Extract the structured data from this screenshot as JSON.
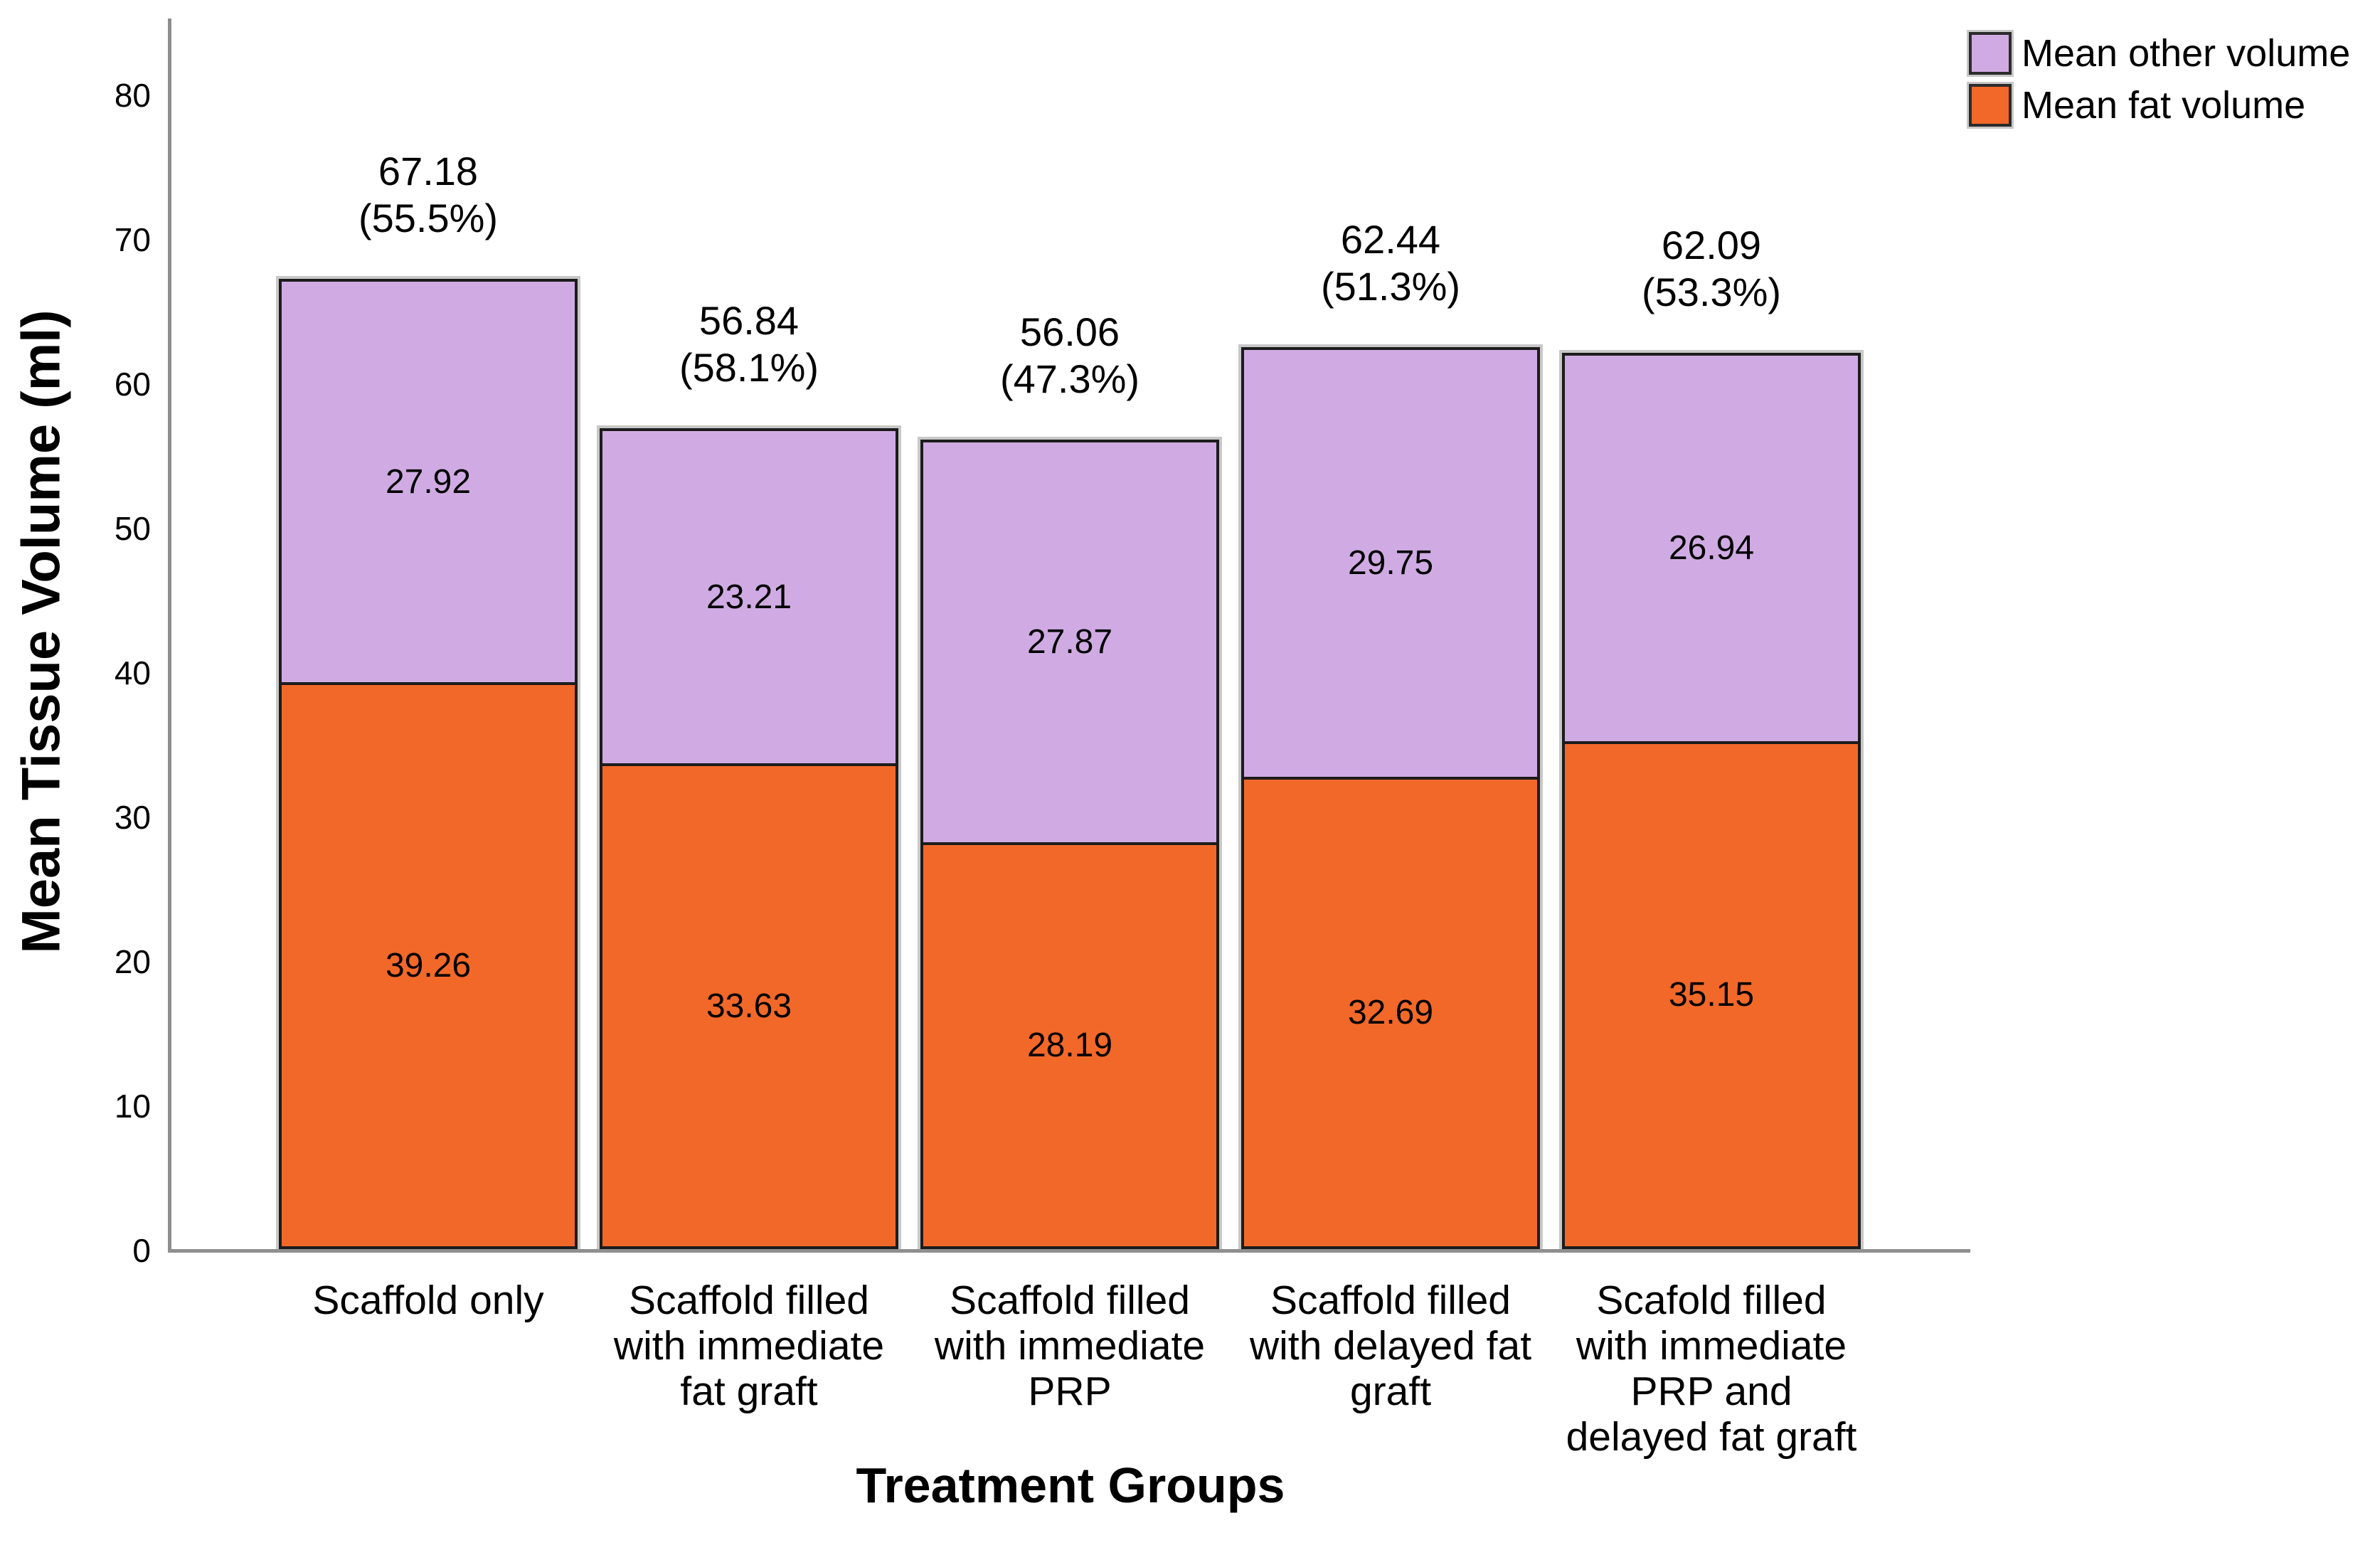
{
  "chart_data": {
    "type": "bar",
    "stacked": true,
    "title": "",
    "xlabel": "Treatment Groups",
    "ylabel": "Mean Tissue Volume (ml)",
    "ylim": [
      0,
      85
    ],
    "yticks": [
      0,
      10,
      20,
      30,
      40,
      50,
      60,
      70,
      80
    ],
    "grid": false,
    "legend_position": "top-right",
    "categories": [
      {
        "label": "Scaffold only",
        "lines": [
          "Scaffold only"
        ]
      },
      {
        "label": "Scaffold filled with immediate fat graft",
        "lines": [
          "Scaffold filled",
          "with immediate",
          "fat graft"
        ]
      },
      {
        "label": "Scaffold filled with immediate PRP",
        "lines": [
          "Scaffold filled",
          "with immediate",
          "PRP"
        ]
      },
      {
        "label": "Scaffold filled with delayed fat graft",
        "lines": [
          "Scaffold filled",
          "with delayed fat",
          "graft"
        ]
      },
      {
        "label": "Scafold filled with immediate PRP and delayed fat graft",
        "lines": [
          "Scafold filled",
          "with immediate",
          "PRP and",
          "delayed fat graft"
        ]
      }
    ],
    "series": [
      {
        "name": "Mean fat volume",
        "color": "#F26829",
        "values": [
          39.26,
          33.63,
          28.19,
          32.69,
          35.15
        ],
        "value_labels": [
          "39.26",
          "33.63",
          "28.19",
          "32.69",
          "35.15"
        ]
      },
      {
        "name": "Mean other volume",
        "color": "#D0ABE3",
        "values": [
          27.92,
          23.21,
          27.87,
          29.75,
          26.94
        ],
        "value_labels": [
          "27.92",
          "23.21",
          "27.87",
          "29.75",
          "26.94"
        ]
      }
    ],
    "totals": [
      {
        "value": "67.18",
        "percent": "(55.5%)"
      },
      {
        "value": "56.84",
        "percent": "(58.1%)"
      },
      {
        "value": "56.06",
        "percent": "(47.3%)"
      },
      {
        "value": "62.44",
        "percent": "(51.3%)"
      },
      {
        "value": "62.09",
        "percent": "(53.3%)"
      }
    ],
    "colors": {
      "bar_border": "#1c1c1c",
      "axis_line": "#8e8e8e",
      "background": "#ffffff",
      "text": "#000000"
    }
  }
}
